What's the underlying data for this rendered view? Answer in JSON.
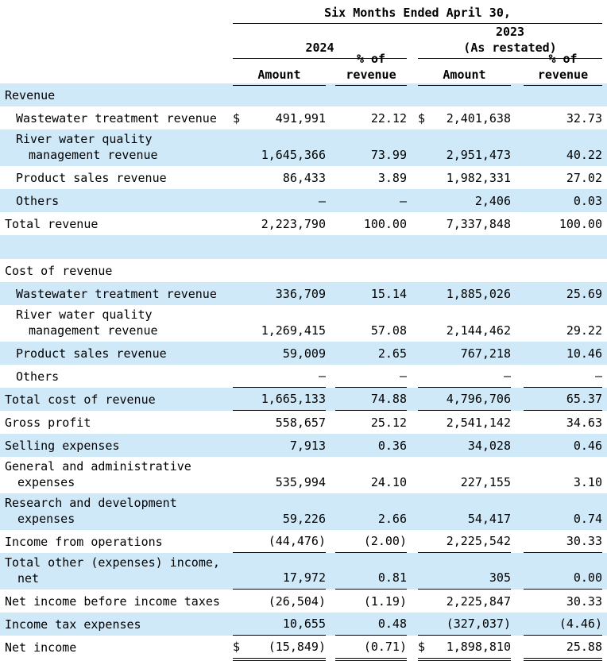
{
  "header": {
    "period_title": "Six Months Ended April 30,",
    "col_groups": [
      {
        "label": "2024",
        "sublabel": ""
      },
      {
        "label": "2023",
        "sublabel": "(As restated)"
      }
    ],
    "col_headers": {
      "amount": "Amount",
      "pct_line1": "% of",
      "pct_line2": "revenue"
    }
  },
  "colors": {
    "stripe_blue": "#cfe9f8",
    "text": "#000000",
    "background": "#ffffff"
  },
  "table": {
    "columns": [
      "label",
      "2024 Amount",
      "2024 % of revenue",
      "2023 Amount",
      "2023 % of revenue"
    ],
    "rows": [
      {
        "type": "section",
        "bg": "blue",
        "label": "Revenue"
      },
      {
        "bg": "white",
        "indent": 1,
        "label": "Wastewater treatment revenue",
        "cur1": "$",
        "a1": "491,991",
        "p1": "22.12",
        "cur2": "$",
        "a2": "2,401,638",
        "p2": "32.73"
      },
      {
        "bg": "blue",
        "indent": 1,
        "label": "River water quality",
        "label2": "management revenue",
        "a1": "1,645,366",
        "p1": "73.99",
        "a2": "2,951,473",
        "p2": "40.22"
      },
      {
        "bg": "white",
        "indent": 1,
        "label": "Product sales revenue",
        "a1": "86,433",
        "p1": "3.89",
        "a2": "1,982,331",
        "p2": "27.02"
      },
      {
        "bg": "blue",
        "indent": 1,
        "label": "Others",
        "a1": "—",
        "p1": "—",
        "a2": "2,406",
        "p2": "0.03"
      },
      {
        "bg": "white",
        "label": "Total revenue",
        "a1": "2,223,790",
        "p1": "100.00",
        "a2": "7,337,848",
        "p2": "100.00"
      },
      {
        "type": "spacer",
        "bg": "blue"
      },
      {
        "type": "section",
        "bg": "white",
        "label": "Cost of revenue"
      },
      {
        "bg": "blue",
        "indent": 1,
        "label": "Wastewater treatment revenue",
        "a1": "336,709",
        "p1": "15.14",
        "a2": "1,885,026",
        "p2": "25.69"
      },
      {
        "bg": "white",
        "indent": 1,
        "label": "River water quality",
        "label2": "management revenue",
        "a1": "1,269,415",
        "p1": "57.08",
        "a2": "2,144,462",
        "p2": "29.22"
      },
      {
        "bg": "blue",
        "indent": 1,
        "label": "Product sales revenue",
        "a1": "59,009",
        "p1": "2.65",
        "a2": "767,218",
        "p2": "10.46"
      },
      {
        "bg": "white",
        "indent": 1,
        "label": "Others",
        "a1": "—",
        "p1": "—",
        "a2": "—",
        "p2": "—",
        "rule": "single"
      },
      {
        "bg": "blue",
        "label": "Total cost of revenue",
        "a1": "1,665,133",
        "p1": "74.88",
        "a2": "4,796,706",
        "p2": "65.37",
        "rule": "single"
      },
      {
        "bg": "white",
        "label": "Gross profit",
        "a1": "558,657",
        "p1": "25.12",
        "a2": "2,541,142",
        "p2": "34.63"
      },
      {
        "bg": "blue",
        "label": "Selling expenses",
        "a1": "7,913",
        "p1": "0.36",
        "a2": "34,028",
        "p2": "0.46"
      },
      {
        "bg": "white",
        "label": "General and administrative",
        "label2": "expenses",
        "a1": "535,994",
        "p1": "24.10",
        "a2": "227,155",
        "p2": "3.10"
      },
      {
        "bg": "blue",
        "label": "Research and development",
        "label2": "expenses",
        "a1": "59,226",
        "p1": "2.66",
        "a2": "54,417",
        "p2": "0.74"
      },
      {
        "bg": "white",
        "label": "Income from operations",
        "a1": "(44,476)",
        "p1": "(2.00)",
        "a2": "2,225,542",
        "p2": "30.33",
        "rule": "single"
      },
      {
        "bg": "blue",
        "label": "Total other (expenses) income,",
        "label2": "net",
        "a1": "17,972",
        "p1": "0.81",
        "a2": "305",
        "p2": "0.00",
        "rule": "single"
      },
      {
        "bg": "white",
        "label": "Net income before income taxes",
        "a1": "(26,504)",
        "p1": "(1.19)",
        "a2": "2,225,847",
        "p2": "30.33"
      },
      {
        "bg": "blue",
        "label": "Income tax expenses",
        "a1": "10,655",
        "p1": "0.48",
        "a2": "(327,037)",
        "p2": "(4.46)",
        "rule": "single"
      },
      {
        "bg": "white",
        "label": "Net income",
        "cur1": "$",
        "a1": "(15,849)",
        "p1": "(0.71)",
        "cur2": "$",
        "a2": "1,898,810",
        "p2": "25.88",
        "rule": "double"
      }
    ]
  }
}
